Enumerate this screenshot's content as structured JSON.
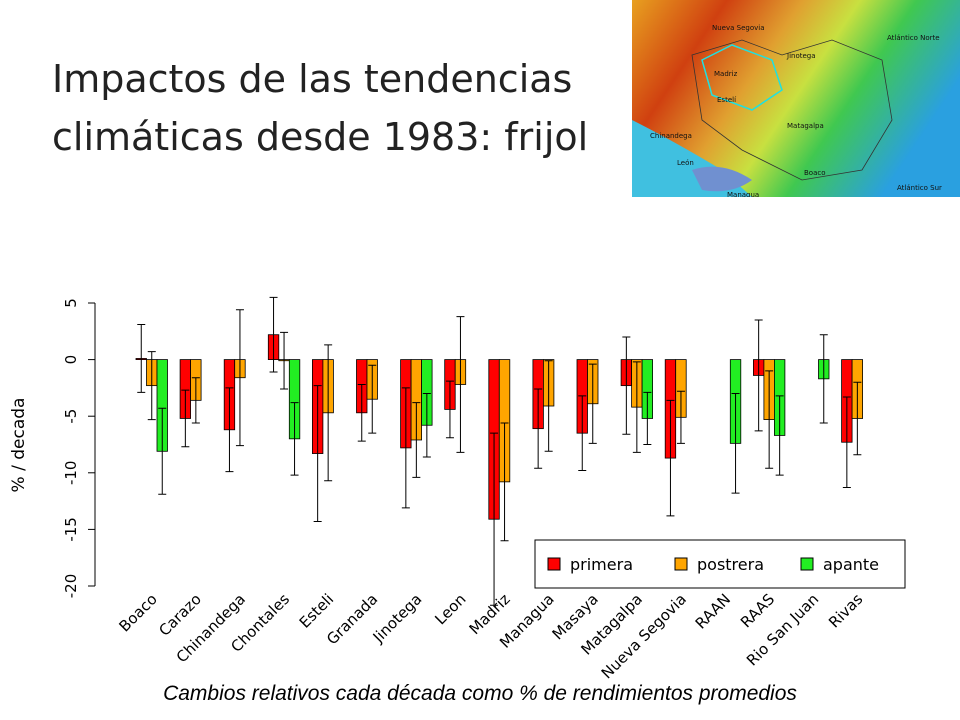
{
  "title_lines": [
    "Impactos de las tendencias",
    "climáticas desde 1983: frijol"
  ],
  "caption": "Cambios relativos cada década como % de rendimientos promedios",
  "map": {
    "labels": [
      "Nueva Segovia",
      "Jinotega",
      "Madriz",
      "Estelí",
      "Chinandega",
      "León",
      "Matagalpa",
      "Boaco",
      "Managua",
      "Atlántico Norte",
      "Atlántico Sur"
    ]
  },
  "chart_data": {
    "type": "bar",
    "y_label": "% / decada",
    "categories": [
      "Boaco",
      "Carazo",
      "Chinandega",
      "Chontales",
      "Esteli",
      "Granada",
      "Jinotega",
      "Leon",
      "Madriz",
      "Managua",
      "Masaya",
      "Matagalpa",
      "Nueva Segovia",
      "RAAN",
      "RAAS",
      "Rio San Juan",
      "Rivas"
    ],
    "series": [
      {
        "name": "primera",
        "color": "#ff0000",
        "values": [
          0.1,
          -5.2,
          -6.2,
          2.2,
          -8.3,
          -4.7,
          -7.8,
          -4.4,
          -14.1,
          -6.1,
          -6.5,
          -2.3,
          -8.7,
          null,
          -1.4,
          null,
          -7.3
        ],
        "errors": [
          3,
          2.5,
          3.7,
          3.3,
          6,
          2.5,
          5.3,
          2.5,
          7.6,
          3.5,
          3.3,
          4.3,
          5.1,
          null,
          4.9,
          null,
          4
        ]
      },
      {
        "name": "postrera",
        "color": "#ffa500",
        "values": [
          -2.3,
          -3.6,
          -1.6,
          -0.1,
          -4.7,
          -3.5,
          -7.1,
          -2.2,
          -10.8,
          -4.1,
          -3.9,
          -4.2,
          -5.1,
          null,
          -5.3,
          null,
          -5.2
        ],
        "errors": [
          3,
          2,
          6,
          2.5,
          6,
          3,
          3.3,
          6,
          5.2,
          4,
          3.5,
          4,
          2.3,
          null,
          4.3,
          null,
          3.2
        ]
      },
      {
        "name": "apante",
        "color": "#22ee22",
        "values": [
          -8.1,
          null,
          null,
          -7,
          null,
          null,
          -5.8,
          null,
          null,
          null,
          null,
          -5.2,
          null,
          -7.4,
          -6.7,
          -1.7,
          null
        ],
        "errors": [
          3.8,
          null,
          null,
          3.2,
          null,
          null,
          2.8,
          null,
          null,
          null,
          null,
          2.3,
          null,
          4.4,
          3.5,
          3.9,
          null
        ]
      }
    ],
    "ylim": [
      -20,
      5
    ],
    "yticks": [
      5,
      0,
      -5,
      -10,
      -15,
      -20
    ],
    "legend": "bottom-right"
  }
}
